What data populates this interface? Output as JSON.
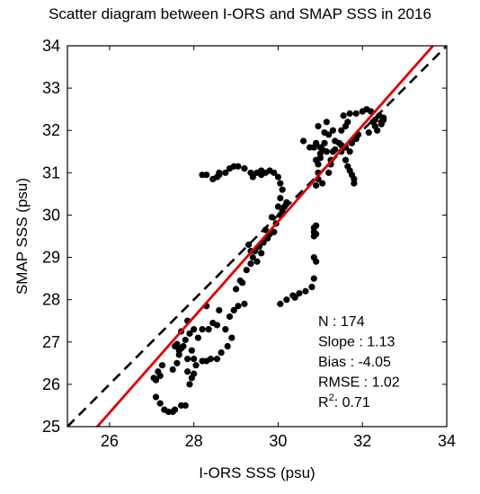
{
  "chart_data": {
    "type": "scatter",
    "title": "Scatter diagram between I-ORS and SMAP SSS in 2016",
    "xlabel": "I-ORS SSS (psu)",
    "ylabel": "SMAP SSS (psu)",
    "xlim": [
      25,
      34
    ],
    "ylim": [
      25,
      34
    ],
    "xticks": [
      26,
      28,
      30,
      32,
      34
    ],
    "yticks": [
      25,
      26,
      27,
      28,
      29,
      30,
      31,
      32,
      33,
      34
    ],
    "grid": false,
    "legend": "none",
    "marker_color": "#000000",
    "reference_line": {
      "style": "dashed",
      "color": "#000000",
      "from": [
        25,
        25
      ],
      "to": [
        34,
        34
      ]
    },
    "fit_line": {
      "color": "#e00000",
      "slope": 1.13,
      "intercept": -4.05
    },
    "stats": [
      {
        "label": "N :",
        "value": "174"
      },
      {
        "label": "Slope :",
        "value": "1.13"
      },
      {
        "label": "Bias :",
        "value": "-4.05"
      },
      {
        "label": "RMSE :",
        "value": "1.02"
      },
      {
        "label": "R",
        "sup": "2",
        "sep": ":",
        "value": "0.71"
      }
    ],
    "points": [
      [
        27.05,
        26.15
      ],
      [
        27.1,
        26.1
      ],
      [
        27.15,
        26.3
      ],
      [
        27.2,
        26.2
      ],
      [
        27.25,
        26.45
      ],
      [
        27.1,
        25.7
      ],
      [
        27.2,
        25.55
      ],
      [
        27.3,
        25.4
      ],
      [
        27.4,
        25.35
      ],
      [
        27.5,
        25.35
      ],
      [
        27.55,
        25.4
      ],
      [
        27.7,
        25.5
      ],
      [
        27.8,
        25.5
      ],
      [
        27.5,
        26.35
      ],
      [
        27.6,
        26.5
      ],
      [
        27.65,
        26.8
      ],
      [
        27.7,
        26.85
      ],
      [
        27.75,
        26.9
      ],
      [
        27.8,
        27.05
      ],
      [
        27.65,
        26.7
      ],
      [
        27.85,
        26.6
      ],
      [
        27.85,
        26.3
      ],
      [
        27.9,
        26.0
      ],
      [
        27.95,
        26.15
      ],
      [
        28.0,
        26.25
      ],
      [
        28.05,
        26.45
      ],
      [
        28.0,
        26.6
      ],
      [
        28.2,
        26.55
      ],
      [
        28.3,
        26.55
      ],
      [
        28.4,
        26.6
      ],
      [
        28.55,
        26.6
      ],
      [
        28.65,
        26.75
      ],
      [
        28.8,
        26.9
      ],
      [
        28.9,
        27.1
      ],
      [
        28.75,
        27.3
      ],
      [
        28.55,
        27.4
      ],
      [
        28.45,
        27.45
      ],
      [
        28.35,
        27.3
      ],
      [
        28.2,
        27.3
      ],
      [
        28.0,
        27.3
      ],
      [
        27.9,
        27.2
      ],
      [
        28.85,
        27.6
      ],
      [
        28.95,
        27.75
      ],
      [
        29.05,
        27.85
      ],
      [
        29.2,
        27.9
      ],
      [
        29.0,
        28.25
      ],
      [
        29.1,
        28.45
      ],
      [
        29.25,
        28.7
      ],
      [
        29.35,
        28.85
      ],
      [
        29.4,
        29.0
      ],
      [
        29.45,
        29.15
      ],
      [
        29.55,
        29.25
      ],
      [
        29.65,
        29.35
      ],
      [
        29.75,
        29.45
      ],
      [
        29.8,
        29.55
      ],
      [
        29.9,
        29.6
      ],
      [
        29.95,
        29.8
      ],
      [
        30.05,
        30.0
      ],
      [
        30.1,
        30.1
      ],
      [
        30.15,
        30.2
      ],
      [
        30.2,
        30.3
      ],
      [
        29.85,
        29.95
      ],
      [
        29.7,
        29.65
      ],
      [
        29.6,
        29.1
      ],
      [
        29.5,
        28.9
      ],
      [
        29.3,
        29.3
      ],
      [
        29.35,
        29.15
      ],
      [
        30.0,
        30.2
      ],
      [
        30.05,
        30.4
      ],
      [
        30.1,
        30.6
      ],
      [
        30.05,
        30.75
      ],
      [
        30.0,
        30.9
      ],
      [
        29.9,
        31.0
      ],
      [
        29.8,
        31.05
      ],
      [
        29.7,
        31.0
      ],
      [
        29.6,
        30.95
      ],
      [
        29.5,
        31.0
      ],
      [
        29.35,
        31.0
      ],
      [
        29.2,
        31.1
      ],
      [
        29.05,
        31.15
      ],
      [
        28.95,
        31.15
      ],
      [
        28.85,
        31.1
      ],
      [
        28.75,
        31.0
      ],
      [
        28.6,
        30.95
      ],
      [
        28.55,
        30.9
      ],
      [
        28.45,
        30.85
      ],
      [
        28.3,
        30.95
      ],
      [
        28.2,
        30.95
      ],
      [
        28.6,
        31.0
      ],
      [
        29.4,
        30.9
      ],
      [
        29.6,
        31.05
      ],
      [
        30.05,
        27.9
      ],
      [
        30.2,
        28.0
      ],
      [
        30.35,
        28.1
      ],
      [
        30.5,
        28.15
      ],
      [
        30.65,
        28.2
      ],
      [
        30.8,
        28.3
      ],
      [
        30.85,
        28.5
      ],
      [
        30.9,
        28.9
      ],
      [
        30.85,
        29.5
      ],
      [
        30.85,
        29.6
      ],
      [
        30.85,
        29.7
      ],
      [
        30.9,
        29.75
      ],
      [
        30.9,
        30.7
      ],
      [
        30.95,
        31.0
      ],
      [
        30.95,
        31.2
      ],
      [
        31.0,
        31.35
      ],
      [
        31.05,
        31.55
      ],
      [
        31.0,
        31.6
      ],
      [
        30.85,
        31.6
      ],
      [
        31.1,
        31.7
      ],
      [
        31.15,
        31.5
      ],
      [
        31.25,
        31.3
      ],
      [
        31.2,
        31.0
      ],
      [
        31.25,
        31.2
      ],
      [
        31.3,
        31.5
      ],
      [
        31.35,
        31.75
      ],
      [
        31.3,
        32.0
      ],
      [
        31.15,
        32.2
      ],
      [
        30.95,
        32.1
      ],
      [
        31.1,
        31.95
      ],
      [
        31.5,
        32.0
      ],
      [
        31.6,
        32.1
      ],
      [
        31.65,
        32.2
      ],
      [
        31.55,
        32.35
      ],
      [
        31.7,
        32.4
      ],
      [
        31.85,
        32.4
      ],
      [
        32.0,
        32.45
      ],
      [
        32.1,
        32.5
      ],
      [
        32.2,
        32.45
      ],
      [
        31.9,
        31.9
      ],
      [
        31.85,
        31.8
      ],
      [
        31.75,
        31.7
      ],
      [
        31.6,
        31.6
      ],
      [
        31.5,
        31.65
      ],
      [
        31.45,
        31.7
      ],
      [
        31.6,
        31.3
      ],
      [
        31.65,
        31.15
      ],
      [
        31.7,
        31.05
      ],
      [
        31.75,
        30.95
      ],
      [
        31.8,
        30.85
      ],
      [
        31.8,
        30.75
      ],
      [
        31.5,
        31.5
      ],
      [
        31.7,
        31.5
      ],
      [
        31.35,
        31.55
      ],
      [
        32.15,
        31.95
      ],
      [
        32.3,
        32.1
      ],
      [
        32.35,
        32.0
      ],
      [
        32.45,
        32.15
      ],
      [
        32.5,
        32.3
      ],
      [
        32.4,
        32.35
      ],
      [
        32.3,
        32.25
      ],
      [
        32.25,
        32.2
      ],
      [
        32.45,
        32.2
      ],
      [
        32.5,
        32.25
      ],
      [
        30.6,
        31.75
      ],
      [
        30.75,
        31.6
      ],
      [
        30.9,
        31.7
      ],
      [
        31.0,
        31.45
      ],
      [
        30.9,
        31.3
      ],
      [
        31.2,
        31.9
      ],
      [
        30.4,
        28.05
      ],
      [
        30.85,
        29.0
      ],
      [
        30.9,
        29.55
      ],
      [
        29.15,
        28.4
      ],
      [
        28.6,
        27.75
      ],
      [
        28.3,
        27.85
      ],
      [
        27.85,
        27.5
      ],
      [
        27.7,
        27.25
      ],
      [
        27.6,
        26.95
      ],
      [
        27.55,
        26.9
      ],
      [
        27.95,
        26.8
      ],
      [
        28.1,
        27.1
      ],
      [
        30.95,
        30.85
      ],
      [
        31.05,
        30.75
      ]
    ]
  }
}
